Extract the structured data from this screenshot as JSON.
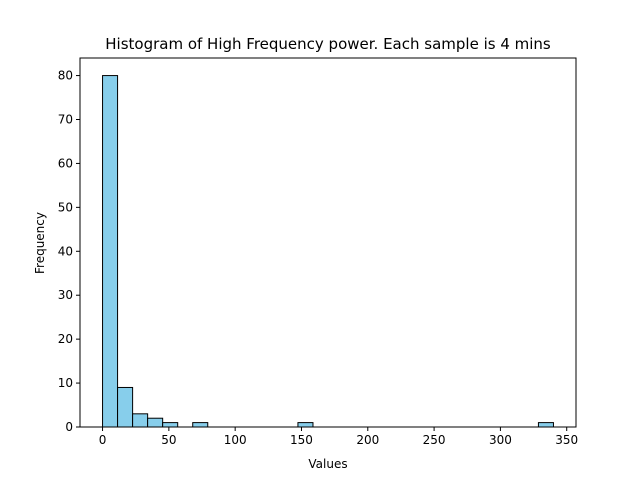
{
  "chart_data": {
    "type": "bar",
    "title": "Histogram of High Frequency power. Each sample is 4 mins",
    "xlabel": "Values",
    "ylabel": "Frequency",
    "bin_edges": [
      0,
      11.33,
      22.67,
      34,
      45.33,
      56.67,
      68,
      79.33,
      90.67,
      102,
      113.33,
      124.67,
      136,
      147.33,
      158.67,
      170,
      181.33,
      192.67,
      204,
      215.33,
      226.67,
      238,
      249.33,
      260.67,
      272,
      283.33,
      294.67,
      306,
      317.33,
      328.67,
      340
    ],
    "counts": [
      80,
      9,
      3,
      2,
      1,
      0,
      1,
      0,
      0,
      0,
      0,
      0,
      0,
      1,
      0,
      0,
      0,
      0,
      0,
      0,
      0,
      0,
      0,
      0,
      0,
      0,
      0,
      0,
      0,
      1
    ],
    "xlim": [
      -17,
      357
    ],
    "ylim": [
      0,
      84
    ],
    "xticks": [
      0,
      50,
      100,
      150,
      200,
      250,
      300,
      350
    ],
    "yticks": [
      0,
      10,
      20,
      30,
      40,
      50,
      60,
      70,
      80
    ],
    "grid": false,
    "bar_color": "#87ceeb",
    "edge_color": "#000000"
  }
}
